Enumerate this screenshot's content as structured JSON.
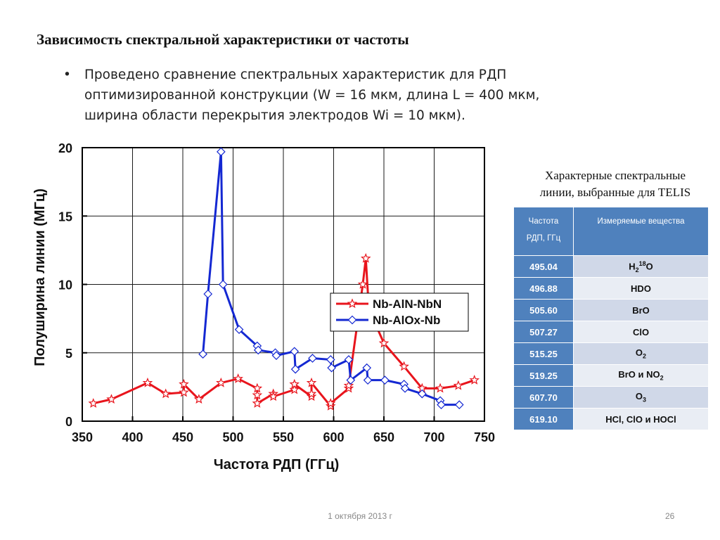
{
  "slide": {
    "title": "Зависимость спектральной характеристики от частоты",
    "bullet_symbol": "•",
    "bullet_lines": [
      "Проведено сравнение спектральных характеристик для РДП",
      "оптимизированной конструкции (W = 16 мкм, длина L = 400 мкм,",
      "ширина области перекрытия электродов Wi = 10 мкм)."
    ],
    "footer_date": "1 октября 2013 г",
    "page_number": "26"
  },
  "chart_data": {
    "type": "line",
    "title": "",
    "xlabel": "Частота РДП (ГГц)",
    "ylabel": "Полуширина линии (МГц)",
    "xlim": [
      350,
      750
    ],
    "ylim": [
      0,
      20
    ],
    "xticks": [
      "350",
      "400",
      "450",
      "500",
      "550",
      "600",
      "650",
      "700",
      "750"
    ],
    "yticks": [
      "0",
      "5",
      "10",
      "15",
      "20"
    ],
    "grid": true,
    "legend_position": "top-right",
    "series": [
      {
        "name": "Nb-AlN-NbN",
        "color": "#e8141c",
        "marker": "star",
        "points": [
          [
            361,
            1.3
          ],
          [
            379,
            1.6
          ],
          [
            415,
            2.8
          ],
          [
            433,
            2.0
          ],
          [
            451,
            2.1
          ],
          [
            451,
            2.7
          ],
          [
            466,
            1.6
          ],
          [
            488,
            2.8
          ],
          [
            505,
            3.1
          ],
          [
            524,
            2.4
          ],
          [
            524,
            1.9
          ],
          [
            524,
            1.3
          ],
          [
            540,
            2.0
          ],
          [
            540,
            1.8
          ],
          [
            561,
            2.3
          ],
          [
            561,
            2.7
          ],
          [
            578,
            1.8
          ],
          [
            578,
            2.0
          ],
          [
            578,
            2.8
          ],
          [
            597,
            1.1
          ],
          [
            597,
            1.3
          ],
          [
            615,
            2.4
          ],
          [
            615,
            2.6
          ],
          [
            629,
            10.0
          ],
          [
            632,
            11.9
          ],
          [
            635,
            8.2
          ],
          [
            650,
            5.7
          ],
          [
            670,
            4.0
          ],
          [
            688,
            2.4
          ],
          [
            706,
            2.4
          ],
          [
            724,
            2.6
          ],
          [
            740,
            3.0
          ]
        ]
      },
      {
        "name": "Nb-AlOx-Nb",
        "color": "#1428d2",
        "marker": "diamond",
        "points": [
          [
            470,
            4.9
          ],
          [
            475,
            9.3
          ],
          [
            488,
            19.7
          ],
          [
            490,
            10.0
          ],
          [
            506,
            6.7
          ],
          [
            524,
            5.5
          ],
          [
            525,
            5.2
          ],
          [
            542,
            5.0
          ],
          [
            543,
            4.8
          ],
          [
            561,
            5.1
          ],
          [
            562,
            3.8
          ],
          [
            579,
            4.6
          ],
          [
            597,
            4.5
          ],
          [
            598,
            3.9
          ],
          [
            615,
            4.5
          ],
          [
            617,
            3.0
          ],
          [
            633,
            3.9
          ],
          [
            634,
            3.0
          ],
          [
            651,
            3.0
          ],
          [
            670,
            2.7
          ],
          [
            671,
            2.4
          ],
          [
            688,
            2.0
          ],
          [
            706,
            1.5
          ],
          [
            707,
            1.2
          ],
          [
            725,
            1.2
          ]
        ]
      }
    ]
  },
  "table": {
    "caption_lines": [
      "Характерные спектральные",
      "линии, выбранные для TELIS"
    ],
    "header": {
      "col1_lines": [
        "Частота",
        "РДП, ГГц"
      ],
      "col2": "Измеряемые вещества"
    },
    "rows": [
      {
        "freq": "495.04",
        "base": "H",
        "parts": [
          {
            "t": "H"
          },
          {
            "t": "2",
            "s": "sub"
          },
          {
            "t": "18",
            "s": "sup"
          },
          {
            "t": "O"
          }
        ]
      },
      {
        "freq": "496.88",
        "parts": [
          {
            "t": "HDO"
          }
        ]
      },
      {
        "freq": "505.60",
        "parts": [
          {
            "t": "BrO"
          }
        ]
      },
      {
        "freq": "507.27",
        "parts": [
          {
            "t": "ClO"
          }
        ]
      },
      {
        "freq": "515.25",
        "parts": [
          {
            "t": "O"
          },
          {
            "t": "2",
            "s": "sub"
          }
        ]
      },
      {
        "freq": "519.25",
        "parts": [
          {
            "t": "BrO и NO"
          },
          {
            "t": "2",
            "s": "sub"
          }
        ]
      },
      {
        "freq": "607.70",
        "parts": [
          {
            "t": "O"
          },
          {
            "t": "3",
            "s": "sub"
          }
        ]
      },
      {
        "freq": "619.10",
        "parts": [
          {
            "t": "HCl, ClO и HOCl"
          }
        ]
      }
    ]
  }
}
